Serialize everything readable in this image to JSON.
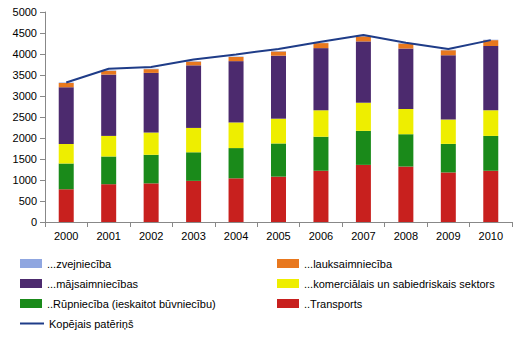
{
  "chart_data": {
    "type": "bar",
    "stacked": true,
    "grid": false,
    "legend": "bottom",
    "categories": [
      "2000",
      "2001",
      "2002",
      "2003",
      "2004",
      "2005",
      "2006",
      "2007",
      "2008",
      "2009",
      "2010"
    ],
    "ylim": [
      0,
      5000
    ],
    "yticks": [
      0,
      500,
      1000,
      1500,
      2000,
      2500,
      3000,
      3500,
      4000,
      4500,
      5000
    ],
    "series": [
      {
        "name": "..Transports",
        "type": "bar",
        "color": "#c8201e",
        "values": [
          780,
          900,
          920,
          980,
          1040,
          1080,
          1220,
          1360,
          1320,
          1180,
          1220
        ]
      },
      {
        "name": "..Rūpniecība (ieskaitot būvniecību)",
        "type": "bar",
        "color": "#1a8a1a",
        "values": [
          610,
          660,
          680,
          680,
          720,
          790,
          810,
          810,
          770,
          680,
          830
        ]
      },
      {
        "name": "...komerciālais un sabiedriskais sektors",
        "type": "bar",
        "color": "#eeee00",
        "values": [
          470,
          490,
          530,
          580,
          610,
          590,
          630,
          670,
          600,
          580,
          610
        ]
      },
      {
        "name": "...mājsaimniecības",
        "type": "bar",
        "color": "#4c2a6e",
        "values": [
          1350,
          1460,
          1420,
          1490,
          1460,
          1500,
          1480,
          1460,
          1440,
          1530,
          1530
        ]
      },
      {
        "name": "...lauksaimniecība",
        "type": "bar",
        "color": "#e8781e",
        "values": [
          100,
          90,
          90,
          90,
          100,
          100,
          120,
          120,
          120,
          120,
          140
        ]
      },
      {
        "name": "...zvejniecība",
        "type": "bar",
        "color": "#8fa6e0",
        "values": [
          10,
          10,
          10,
          10,
          10,
          10,
          10,
          10,
          10,
          10,
          10
        ]
      },
      {
        "name": "Kopējais patēriņš",
        "type": "line",
        "color": "#1f3c88",
        "values": [
          3320,
          3650,
          3690,
          3870,
          3990,
          4120,
          4290,
          4450,
          4270,
          4120,
          4330
        ]
      }
    ]
  }
}
